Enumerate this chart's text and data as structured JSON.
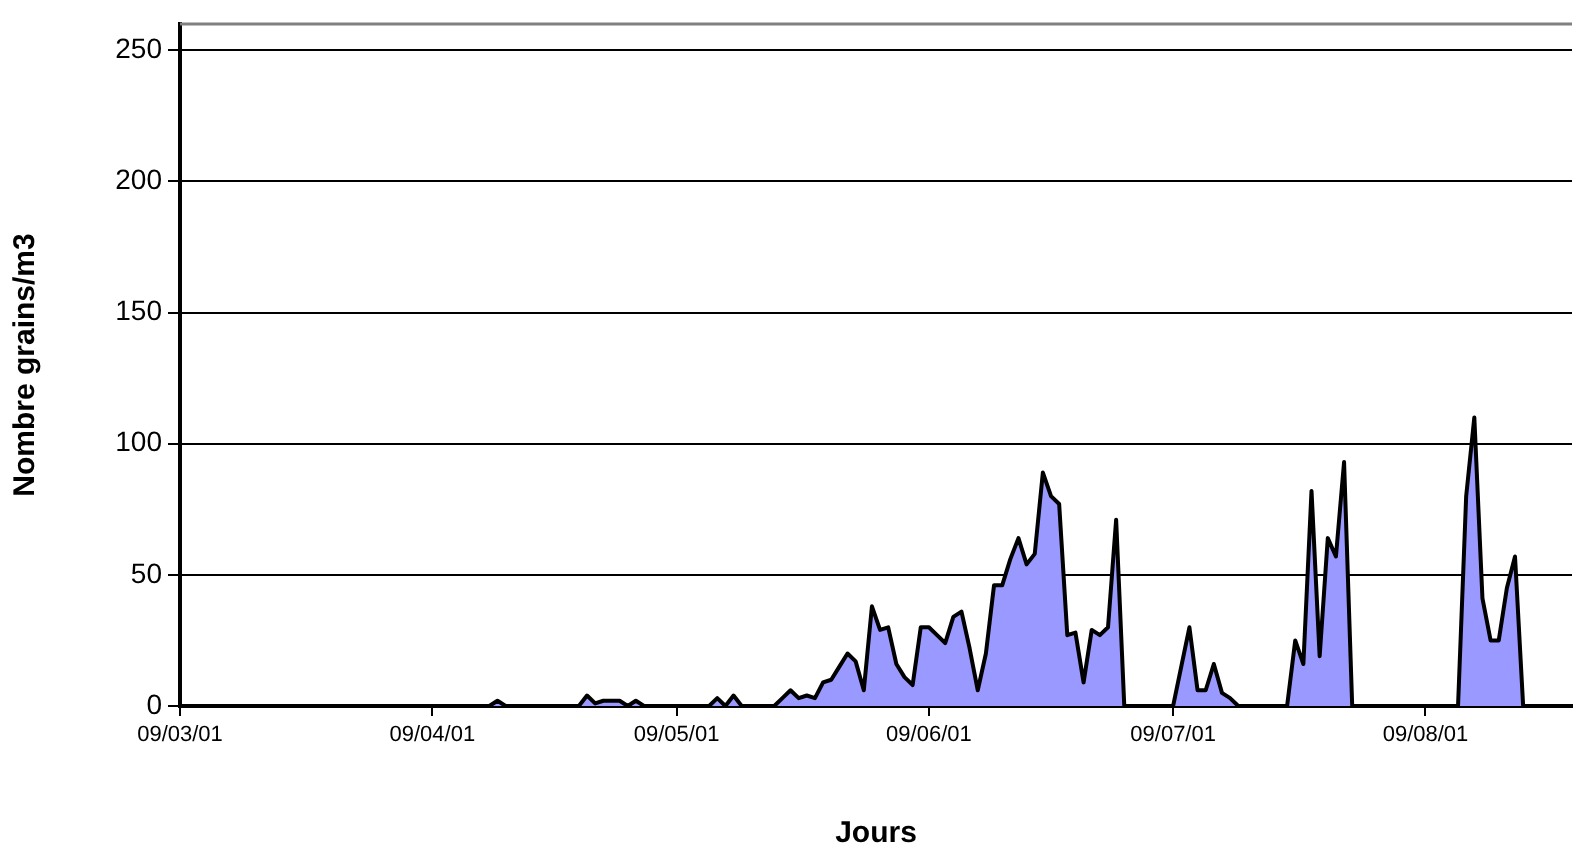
{
  "chart_data": {
    "type": "area",
    "xlabel": "Jours",
    "ylabel": "Nombre grains/m3",
    "categories": [
      "09/03/01",
      null,
      null,
      null,
      null,
      null,
      null,
      null,
      null,
      null,
      null,
      null,
      null,
      null,
      null,
      null,
      null,
      null,
      null,
      null,
      null,
      null,
      null,
      null,
      null,
      null,
      null,
      null,
      null,
      null,
      null,
      "09/04/01",
      null,
      null,
      null,
      null,
      null,
      null,
      null,
      null,
      null,
      null,
      null,
      null,
      null,
      null,
      null,
      null,
      null,
      null,
      null,
      null,
      null,
      null,
      null,
      null,
      null,
      null,
      null,
      null,
      null,
      "09/05/01",
      null,
      null,
      null,
      null,
      null,
      null,
      null,
      null,
      null,
      null,
      null,
      null,
      null,
      null,
      null,
      null,
      null,
      null,
      null,
      null,
      null,
      null,
      null,
      null,
      null,
      null,
      null,
      null,
      null,
      null,
      "09/06/01",
      null,
      null,
      null,
      null,
      null,
      null,
      null,
      null,
      null,
      null,
      null,
      null,
      null,
      null,
      null,
      null,
      null,
      null,
      null,
      null,
      null,
      null,
      null,
      null,
      null,
      null,
      null,
      null,
      null,
      "09/07/01",
      null,
      null,
      null,
      null,
      null,
      null,
      null,
      null,
      null,
      null,
      null,
      null,
      null,
      null,
      null,
      null,
      null,
      null,
      null,
      null,
      null,
      null,
      null,
      null,
      null,
      null,
      null,
      null,
      null,
      null,
      "09/08/01",
      null,
      null,
      null,
      null,
      null,
      null,
      null,
      null,
      null,
      null,
      null,
      null,
      null,
      null,
      null,
      null,
      null,
      null
    ],
    "series": [
      {
        "color": "#9999ff",
        "values": [
          0,
          0,
          0,
          0,
          0,
          0,
          0,
          0,
          0,
          0,
          0,
          0,
          0,
          0,
          0,
          0,
          0,
          0,
          0,
          0,
          0,
          0,
          0,
          0,
          0,
          0,
          0,
          0,
          0,
          0,
          0,
          0,
          0,
          0,
          0,
          0,
          0,
          0,
          0,
          2,
          0,
          0,
          0,
          0,
          0,
          0,
          0,
          0,
          0,
          0,
          4,
          1,
          2,
          2,
          2,
          0,
          2,
          0,
          0,
          0,
          0,
          0,
          0,
          0,
          0,
          0,
          3,
          0,
          4,
          0,
          0,
          0,
          0,
          0,
          3,
          6,
          3,
          4,
          3,
          9,
          10,
          15,
          20,
          17,
          6,
          38,
          29,
          30,
          16,
          11,
          8,
          30,
          30,
          27,
          24,
          34,
          36,
          22,
          6,
          20,
          46,
          46,
          56,
          64,
          54,
          58,
          89,
          80,
          77,
          27,
          28,
          9,
          29,
          27,
          30,
          71,
          0,
          0,
          0,
          0,
          0,
          0,
          0,
          15,
          30,
          6,
          6,
          16,
          5,
          3,
          0,
          0,
          0,
          0,
          0,
          0,
          0,
          25,
          16,
          82,
          19,
          64,
          57,
          93,
          0,
          0,
          0,
          0,
          0,
          0,
          0,
          0,
          0,
          0,
          0,
          0,
          0,
          0,
          80,
          110,
          41,
          25,
          25,
          45,
          57,
          0,
          0,
          0,
          0,
          0,
          0,
          0
        ]
      }
    ],
    "ylim": [
      0,
      260
    ],
    "yticks": [
      0,
      50,
      100,
      150,
      200,
      250
    ],
    "grid": "y"
  }
}
